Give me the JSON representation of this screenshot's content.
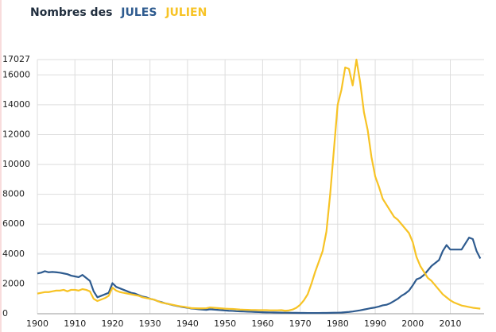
{
  "chart_data": {
    "type": "line",
    "title": "Nombres des",
    "x": [
      1900,
      1901,
      1902,
      1903,
      1904,
      1905,
      1906,
      1907,
      1908,
      1909,
      1910,
      1911,
      1912,
      1913,
      1914,
      1915,
      1916,
      1917,
      1918,
      1919,
      1920,
      1921,
      1922,
      1923,
      1924,
      1925,
      1926,
      1927,
      1928,
      1929,
      1930,
      1931,
      1932,
      1933,
      1934,
      1935,
      1936,
      1937,
      1938,
      1939,
      1940,
      1941,
      1942,
      1943,
      1944,
      1945,
      1946,
      1947,
      1948,
      1949,
      1950,
      1951,
      1952,
      1953,
      1954,
      1955,
      1956,
      1957,
      1958,
      1959,
      1960,
      1961,
      1962,
      1963,
      1964,
      1965,
      1966,
      1967,
      1968,
      1969,
      1970,
      1971,
      1972,
      1973,
      1974,
      1975,
      1976,
      1977,
      1978,
      1979,
      1980,
      1981,
      1982,
      1983,
      1984,
      1985,
      1986,
      1987,
      1988,
      1989,
      1990,
      1991,
      1992,
      1993,
      1994,
      1995,
      1996,
      1997,
      1998,
      1999,
      2000,
      2001,
      2002,
      2003,
      2004,
      2005,
      2006,
      2007,
      2008,
      2009,
      2010,
      2011,
      2012,
      2013,
      2014,
      2015,
      2016,
      2017,
      2018
    ],
    "series": [
      {
        "name": "JULES",
        "color": "#2e5b8f",
        "values": [
          2700,
          2750,
          2850,
          2780,
          2800,
          2780,
          2750,
          2700,
          2650,
          2550,
          2500,
          2450,
          2600,
          2400,
          2200,
          1500,
          1100,
          1200,
          1300,
          1400,
          2050,
          1800,
          1700,
          1600,
          1500,
          1400,
          1350,
          1250,
          1150,
          1100,
          1000,
          950,
          850,
          780,
          700,
          650,
          580,
          530,
          480,
          440,
          400,
          350,
          330,
          300,
          280,
          260,
          300,
          280,
          260,
          240,
          220,
          200,
          190,
          170,
          160,
          150,
          140,
          130,
          120,
          110,
          100,
          95,
          90,
          85,
          80,
          75,
          70,
          65,
          60,
          60,
          55,
          55,
          50,
          50,
          50,
          50,
          55,
          55,
          60,
          65,
          70,
          80,
          100,
          120,
          150,
          190,
          230,
          280,
          330,
          380,
          420,
          480,
          560,
          600,
          700,
          850,
          1000,
          1200,
          1350,
          1550,
          1900,
          2300,
          2400,
          2600,
          2900,
          3200,
          3400,
          3600,
          4200,
          4600,
          4300,
          4300,
          4300,
          4300,
          4700,
          5100,
          5000,
          4200,
          3700
        ]
      },
      {
        "name": "JULIEN",
        "color": "#f7c325",
        "values": [
          1350,
          1400,
          1450,
          1450,
          1500,
          1550,
          1550,
          1600,
          1500,
          1600,
          1600,
          1550,
          1650,
          1600,
          1500,
          1000,
          850,
          950,
          1050,
          1200,
          1750,
          1550,
          1450,
          1400,
          1350,
          1300,
          1250,
          1200,
          1100,
          1050,
          1000,
          950,
          850,
          750,
          700,
          650,
          600,
          550,
          500,
          470,
          420,
          380,
          370,
          360,
          360,
          370,
          420,
          400,
          380,
          360,
          340,
          330,
          320,
          300,
          280,
          270,
          260,
          250,
          250,
          240,
          240,
          240,
          230,
          230,
          230,
          240,
          200,
          220,
          280,
          400,
          600,
          900,
          1300,
          2000,
          2800,
          3500,
          4200,
          5500,
          8000,
          11000,
          14000,
          15000,
          16500,
          16400,
          15300,
          17027,
          15500,
          13500,
          12300,
          10500,
          9200,
          8500,
          7700,
          7300,
          6900,
          6500,
          6300,
          6000,
          5700,
          5400,
          4800,
          3800,
          3200,
          2800,
          2400,
          2200,
          1900,
          1600,
          1300,
          1100,
          900,
          750,
          650,
          550,
          500,
          450,
          400,
          370,
          340
        ]
      }
    ],
    "xlim": [
      1900,
      2019
    ],
    "xticks": [
      1900,
      1910,
      1920,
      1930,
      1940,
      1950,
      1960,
      1970,
      1980,
      1990,
      2000,
      2010
    ],
    "ylim": [
      0,
      17027
    ],
    "yticks": [
      0,
      2000,
      4000,
      6000,
      8000,
      10000,
      12000,
      14000,
      16000,
      17027
    ],
    "grid": true
  }
}
